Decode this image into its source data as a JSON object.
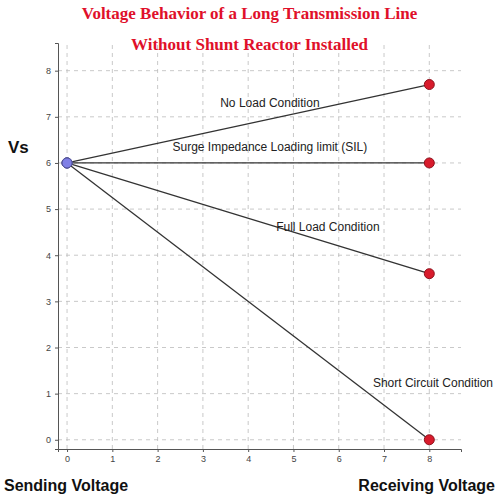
{
  "chart_data": {
    "type": "line",
    "title": "Voltage Behavior of a Long Transmission Line",
    "subtitle": "Without Shunt Reactor Installed",
    "ylabel": "Vs",
    "annotations": [
      "Sending Voltage",
      "Receiving Voltage"
    ],
    "x": [
      0,
      8
    ],
    "series": [
      {
        "name": "No Load Condition",
        "color": "#333333",
        "colors": [
          "#7f7fe6",
          "#d81b2c"
        ],
        "marker": "circle",
        "values": [
          6,
          7.7
        ]
      },
      {
        "name": "Surge Impedance Loading limit (SIL)",
        "color": "#333333",
        "colors": [
          "#7f7fe6",
          "#d81b2c"
        ],
        "marker": "circle",
        "values": [
          6,
          6
        ]
      },
      {
        "name": "Full Load Condition",
        "color": "#333333",
        "colors": [
          "#7f7fe6",
          "#d81b2c"
        ],
        "marker": "circle",
        "values": [
          6,
          3.6
        ]
      },
      {
        "name": "Short Circuit Condition",
        "color": "#333333",
        "colors": [
          "#7f7fe6",
          "#d81b2c"
        ],
        "marker": "circle",
        "values": [
          6,
          0
        ]
      }
    ],
    "xlim": [
      -0.2,
      8.7
    ],
    "ylim": [
      -0.2,
      8.6
    ],
    "xticks": [
      0,
      1,
      2,
      3,
      4,
      5,
      6,
      7,
      8
    ],
    "yticks": [
      0,
      1,
      2,
      3,
      4,
      5,
      6,
      7,
      8
    ],
    "grid": true
  }
}
